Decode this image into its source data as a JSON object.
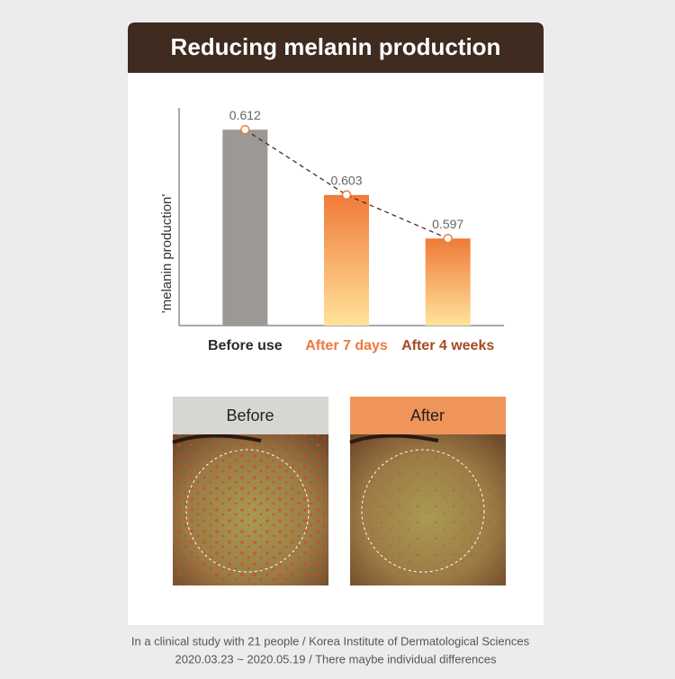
{
  "title": "Reducing melanin production",
  "chart_data": {
    "type": "bar",
    "ylabel": "'melanin production'",
    "categories": [
      "Before use",
      "After 7 days",
      "After 4 weeks"
    ],
    "values": [
      0.612,
      0.603,
      0.597
    ],
    "colors": [
      "#9c9995",
      "#f07a3a",
      "#f07a3a"
    ],
    "label_colors": [
      "#2b2b2b",
      "#f0783a",
      "#a44a22"
    ],
    "ylim": [
      0.585,
      0.615
    ],
    "trend_line": true
  },
  "photos": [
    {
      "label": "Before"
    },
    {
      "label": "After"
    }
  ],
  "footer": [
    "In a clinical study with 21 people / Korea Institute of Dermatological Sciences",
    "2020.03.23 ~ 2020.05.19 / There maybe individual differences"
  ]
}
